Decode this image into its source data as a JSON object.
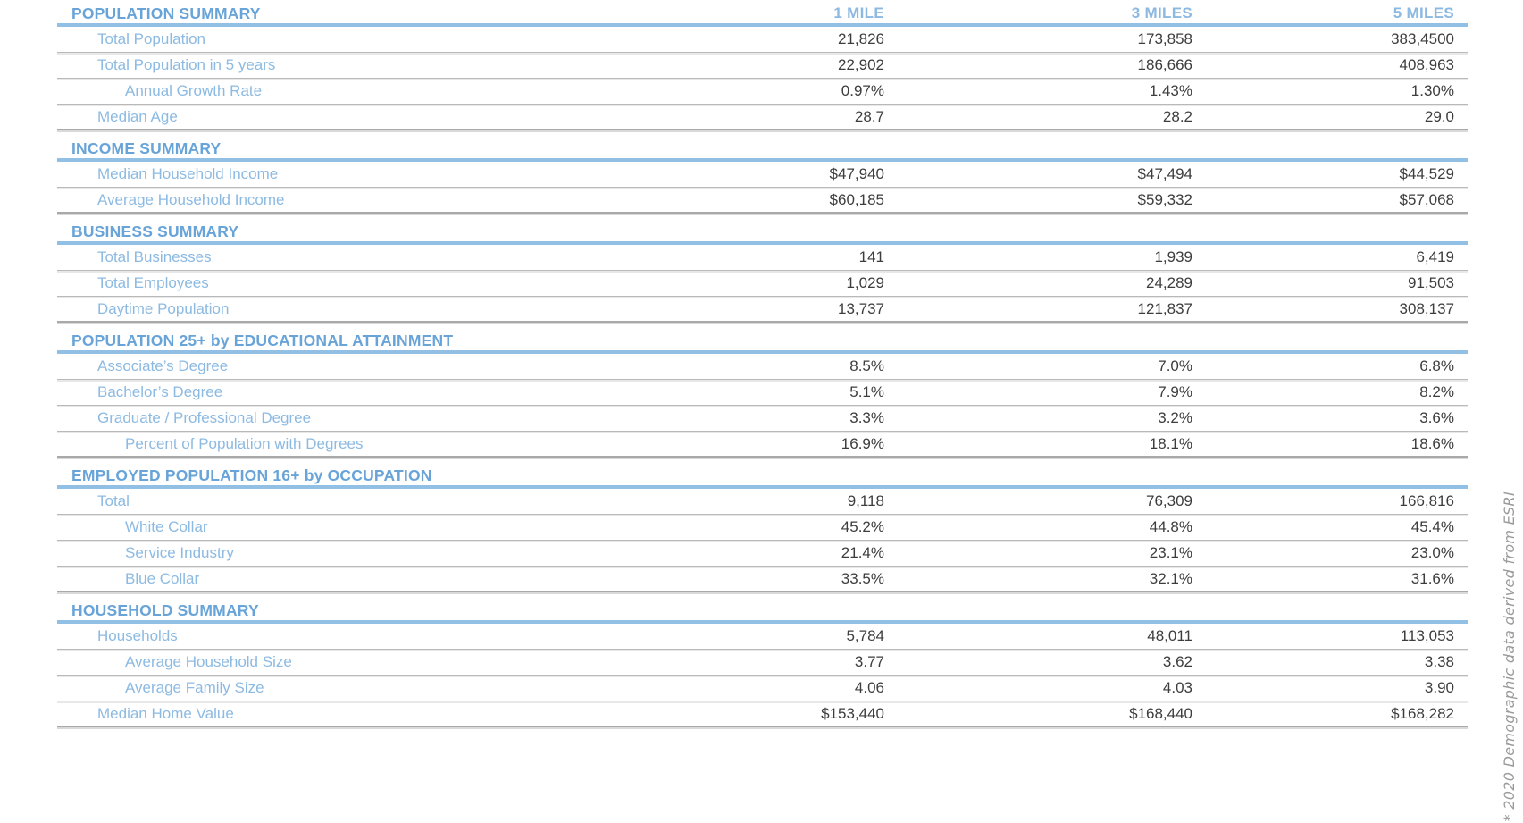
{
  "footnote": "* 2020 Demographic data derived from ESRI",
  "columns": [
    "1 MILE",
    "3 MILES",
    "5 MILES"
  ],
  "colors": {
    "section_title": "#69a4d8",
    "column_header": "#8cb9e2",
    "row_label": "#8cbae2",
    "value_text": "#3d3d3d",
    "section_rule": "#92bfe4",
    "row_rule": "#b9b9b9",
    "footnote_text": "#9b9b9b"
  },
  "sections": [
    {
      "title": "POPULATION SUMMARY",
      "rows": [
        {
          "label": "Total Population",
          "indent": 1,
          "values": [
            "21,826",
            "173,858",
            "383,4500"
          ]
        },
        {
          "label": "Total Population in 5 years",
          "indent": 1,
          "values": [
            "22,902",
            "186,666",
            "408,963"
          ]
        },
        {
          "label": "Annual Growth Rate",
          "indent": 2,
          "values": [
            "0.97%",
            "1.43%",
            "1.30%"
          ]
        },
        {
          "label": "Median Age",
          "indent": 1,
          "values": [
            "28.7",
            "28.2",
            "29.0"
          ]
        }
      ]
    },
    {
      "title": "INCOME SUMMARY",
      "rows": [
        {
          "label": "Median Household Income",
          "indent": 1,
          "values": [
            "$47,940",
            "$47,494",
            "$44,529"
          ]
        },
        {
          "label": "Average Household Income",
          "indent": 1,
          "values": [
            "$60,185",
            "$59,332",
            "$57,068"
          ]
        }
      ]
    },
    {
      "title": "BUSINESS SUMMARY",
      "rows": [
        {
          "label": "Total Businesses",
          "indent": 1,
          "values": [
            "141",
            "1,939",
            "6,419"
          ]
        },
        {
          "label": "Total Employees",
          "indent": 1,
          "values": [
            "1,029",
            "24,289",
            "91,503"
          ]
        },
        {
          "label": "Daytime Population",
          "indent": 1,
          "values": [
            "13,737",
            "121,837",
            "308,137"
          ]
        }
      ]
    },
    {
      "title": "POPULATION 25+ by EDUCATIONAL ATTAINMENT",
      "rows": [
        {
          "label": "Associate’s Degree",
          "indent": 1,
          "values": [
            "8.5%",
            "7.0%",
            "6.8%"
          ]
        },
        {
          "label": "Bachelor’s Degree",
          "indent": 1,
          "values": [
            "5.1%",
            "7.9%",
            "8.2%"
          ]
        },
        {
          "label": "Graduate / Professional Degree",
          "indent": 1,
          "values": [
            "3.3%",
            "3.2%",
            "3.6%"
          ]
        },
        {
          "label": "Percent of Population with Degrees",
          "indent": 2,
          "values": [
            "16.9%",
            "18.1%",
            "18.6%"
          ]
        }
      ]
    },
    {
      "title": "EMPLOYED POPULATION 16+ by OCCUPATION",
      "rows": [
        {
          "label": "Total",
          "indent": 1,
          "values": [
            "9,118",
            "76,309",
            "166,816"
          ]
        },
        {
          "label": "White Collar",
          "indent": 2,
          "values": [
            "45.2%",
            "44.8%",
            "45.4%"
          ]
        },
        {
          "label": "Service Industry",
          "indent": 2,
          "values": [
            "21.4%",
            "23.1%",
            "23.0%"
          ]
        },
        {
          "label": "Blue Collar",
          "indent": 2,
          "values": [
            "33.5%",
            "32.1%",
            "31.6%"
          ]
        }
      ]
    },
    {
      "title": "HOUSEHOLD SUMMARY",
      "rows": [
        {
          "label": "Households",
          "indent": 1,
          "values": [
            "5,784",
            "48,011",
            "113,053"
          ]
        },
        {
          "label": "Average Household Size",
          "indent": 2,
          "values": [
            "3.77",
            "3.62",
            "3.38"
          ]
        },
        {
          "label": "Average Family Size",
          "indent": 2,
          "values": [
            "4.06",
            "4.03",
            "3.90"
          ]
        },
        {
          "label": "Median Home Value",
          "indent": 1,
          "values": [
            "$153,440",
            "$168,440",
            "$168,282"
          ]
        }
      ]
    }
  ]
}
